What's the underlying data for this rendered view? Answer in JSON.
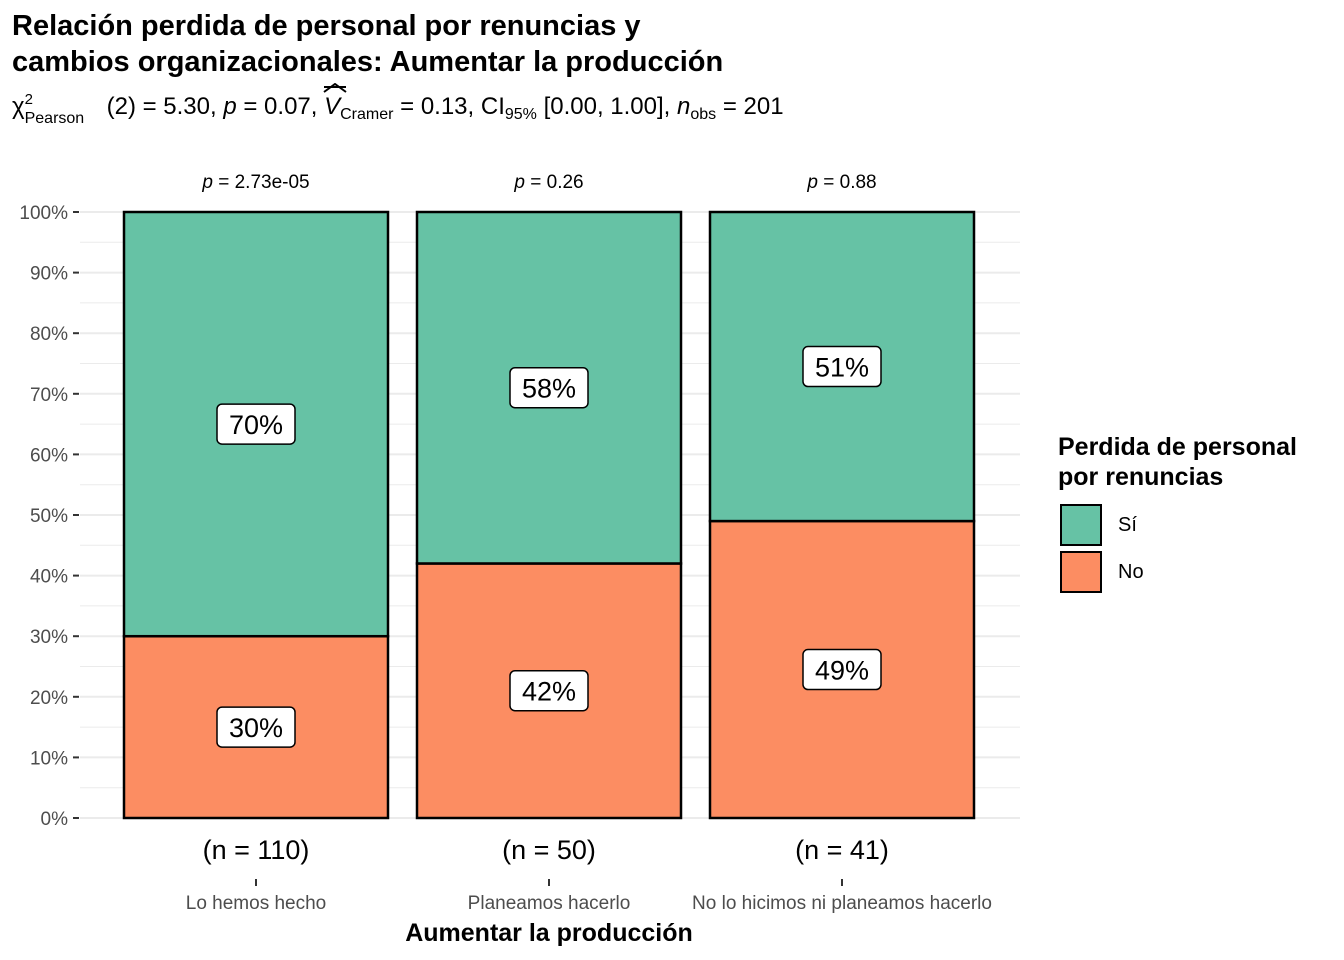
{
  "title_line1": "Relación perdida de personal por renuncias y",
  "title_line2": "cambios organizacionales: Aumentar la producción",
  "subtitle": {
    "chi": "χ",
    "chi_sup": "2",
    "chi_sub": "Pearson",
    "df_part": "(2) = 5.30, ",
    "p_sym": "p",
    "p_part": " = 0.07, ",
    "v_sym": "V",
    "v_sub": "Cramer",
    "v_part": " = 0.13, CI",
    "ci_sub": "95%",
    "ci_part": " [0.00, 1.00], ",
    "n_sym": "n",
    "n_sub": "obs",
    "n_part": " = 201"
  },
  "legend": {
    "title_line1": "Perdida de personal",
    "title_line2": "por renuncias",
    "items": [
      {
        "label": "Sí",
        "color": "#66C2A5"
      },
      {
        "label": "No",
        "color": "#FC8D62"
      }
    ]
  },
  "chart_data": {
    "type": "bar",
    "stacked": true,
    "percent": true,
    "categories": [
      "Lo hemos hecho",
      "Planeamos hacerlo",
      "No lo hicimos ni planeamos hacerlo"
    ],
    "series": [
      {
        "name": "No",
        "color": "#FC8D62",
        "values": [
          30,
          42,
          49
        ],
        "labels": [
          "30%",
          "42%",
          "49%"
        ]
      },
      {
        "name": "Sí",
        "color": "#66C2A5",
        "values": [
          70,
          58,
          51
        ],
        "labels": [
          "70%",
          "58%",
          "51%"
        ]
      }
    ],
    "n_labels": [
      "(n = 110)",
      "(n = 50)",
      "(n = 41)"
    ],
    "p_labels": [
      {
        "sym": "p",
        "text": " = 2.73e-05"
      },
      {
        "sym": "p",
        "text": " = 0.26"
      },
      {
        "sym": "p",
        "text": " = 0.88"
      }
    ],
    "xlabel": "Aumentar la producción",
    "ylabel": "",
    "ylim": [
      0,
      100
    ],
    "y_ticks": [
      "0%",
      "10%",
      "20%",
      "30%",
      "40%",
      "50%",
      "60%",
      "70%",
      "80%",
      "90%",
      "100%"
    ],
    "grid": true
  }
}
